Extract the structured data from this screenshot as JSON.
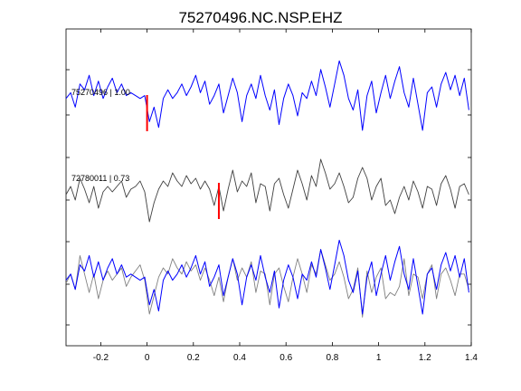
{
  "chart_data": {
    "type": "line",
    "title": "75270496.NC.NSP.EHZ",
    "xlabel": "",
    "ylabel": "",
    "xlim": [
      -0.35,
      1.4
    ],
    "x_ticks": [
      -0.2,
      0,
      0.2,
      0.4,
      0.6,
      0.8,
      1,
      1.2,
      1.4
    ],
    "x_tick_labels": [
      "-0.2",
      "0",
      "0.2",
      "0.4",
      "0.6",
      "0.8",
      "1",
      "1.2",
      "1.4"
    ],
    "y_ticks_visible": false,
    "grid": false,
    "panels": [
      {
        "label": "75270496 | 1.00",
        "color": "#0000ff",
        "pick_time": 0.0,
        "pick_color": "#ff0000"
      },
      {
        "label": "72780011 | 0.73",
        "color": "#404040",
        "pick_time": 0.31,
        "pick_color": "#ff0000"
      },
      {
        "label": "",
        "overlay": true,
        "colors": [
          "#808080",
          "#0000ff"
        ]
      }
    ],
    "series": [
      {
        "color": "#0000ff",
        "x": [
          -0.35,
          -0.33,
          -0.31,
          -0.29,
          -0.27,
          -0.25,
          -0.23,
          -0.21,
          -0.19,
          -0.17,
          -0.15,
          -0.13,
          -0.11,
          -0.09,
          -0.07,
          -0.05,
          -0.03,
          -0.01,
          0.01,
          0.03,
          0.05,
          0.07,
          0.09,
          0.11,
          0.13,
          0.15,
          0.17,
          0.19,
          0.21,
          0.23,
          0.25,
          0.27,
          0.29,
          0.31,
          0.33,
          0.35,
          0.37,
          0.39,
          0.41,
          0.43,
          0.45,
          0.47,
          0.49,
          0.51,
          0.53,
          0.55,
          0.57,
          0.59,
          0.61,
          0.63,
          0.65,
          0.67,
          0.69,
          0.71,
          0.73,
          0.75,
          0.77,
          0.79,
          0.81,
          0.83,
          0.85,
          0.87,
          0.89,
          0.91,
          0.93,
          0.95,
          0.97,
          0.99,
          1.01,
          1.03,
          1.05,
          1.07,
          1.09,
          1.11,
          1.13,
          1.15,
          1.17,
          1.19,
          1.21,
          1.23,
          1.25,
          1.27,
          1.29,
          1.31,
          1.33,
          1.35,
          1.37,
          1.39
        ],
        "y": [
          0.1,
          0.3,
          -0.2,
          0.6,
          0.4,
          0.9,
          0.2,
          0.7,
          0.1,
          0.5,
          0.8,
          0.3,
          0.6,
          0.2,
          0.3,
          0.2,
          0.1,
          0.2,
          -0.7,
          -0.2,
          -0.9,
          0.1,
          0.4,
          0.1,
          0.3,
          0.6,
          0.2,
          0.5,
          0.9,
          0.3,
          0.7,
          -0.1,
          0.2,
          0.6,
          -0.4,
          0.2,
          0.8,
          0.3,
          -0.7,
          0.2,
          0.6,
          0.1,
          0.9,
          0.2,
          -0.3,
          0.4,
          -0.8,
          0.1,
          0.6,
          0.2,
          -0.5,
          0.3,
          0.1,
          0.7,
          0.2,
          1.1,
          0.5,
          -0.2,
          0.6,
          1.4,
          0.9,
          0.1,
          -0.3,
          0.4,
          -1.0,
          0.2,
          0.7,
          -0.4,
          0.3,
          0.9,
          0.1,
          0.7,
          1.2,
          0.3,
          -0.2,
          0.8,
          -0.1,
          -1.0,
          0.3,
          0.5,
          -0.2,
          0.6,
          1.0,
          0.4,
          0.9,
          0.2,
          0.8,
          -0.3
        ]
      },
      {
        "color": "#404040",
        "x": [
          -0.35,
          -0.33,
          -0.31,
          -0.29,
          -0.27,
          -0.25,
          -0.23,
          -0.21,
          -0.19,
          -0.17,
          -0.15,
          -0.13,
          -0.11,
          -0.09,
          -0.07,
          -0.05,
          -0.03,
          -0.01,
          0.01,
          0.03,
          0.05,
          0.07,
          0.09,
          0.11,
          0.13,
          0.15,
          0.17,
          0.19,
          0.21,
          0.23,
          0.25,
          0.27,
          0.29,
          0.31,
          0.33,
          0.35,
          0.37,
          0.39,
          0.41,
          0.43,
          0.45,
          0.47,
          0.49,
          0.51,
          0.53,
          0.55,
          0.57,
          0.59,
          0.61,
          0.63,
          0.65,
          0.67,
          0.69,
          0.71,
          0.73,
          0.75,
          0.77,
          0.79,
          0.81,
          0.83,
          0.85,
          0.87,
          0.89,
          0.91,
          0.93,
          0.95,
          0.97,
          0.99,
          1.01,
          1.03,
          1.05,
          1.07,
          1.09,
          1.11,
          1.13,
          1.15,
          1.17,
          1.19,
          1.21,
          1.23,
          1.25,
          1.27,
          1.29,
          1.31,
          1.33,
          1.35,
          1.37,
          1.39
        ],
        "y": [
          0.0,
          0.3,
          -0.2,
          0.6,
          0.2,
          -0.3,
          0.3,
          -0.5,
          0.1,
          0.3,
          0.1,
          0.3,
          0.5,
          -0.1,
          0.2,
          0.3,
          0.5,
          0.1,
          -1.0,
          -0.3,
          0.2,
          0.5,
          0.3,
          0.8,
          0.5,
          0.3,
          0.7,
          0.4,
          0.6,
          0.2,
          0.5,
          0.2,
          -0.4,
          0.3,
          -0.6,
          0.2,
          0.9,
          0.1,
          0.5,
          0.3,
          0.8,
          -0.3,
          0.4,
          0.3,
          -0.6,
          0.4,
          0.6,
          0.0,
          -0.5,
          0.2,
          0.9,
          0.4,
          -0.2,
          0.7,
          0.3,
          1.3,
          0.8,
          0.2,
          0.4,
          0.8,
          0.3,
          -0.3,
          -0.1,
          0.6,
          1.0,
          0.6,
          -0.2,
          0.3,
          0.6,
          -0.4,
          -0.2,
          -0.7,
          -0.1,
          0.3,
          -0.2,
          0.5,
          0.1,
          -0.5,
          0.3,
          0.2,
          -0.4,
          0.4,
          0.7,
          0.2,
          -0.5,
          0.3,
          0.4,
          0.0
        ]
      },
      {
        "color": "#808080",
        "x": [
          -0.35,
          -0.33,
          -0.31,
          -0.29,
          -0.27,
          -0.25,
          -0.23,
          -0.21,
          -0.19,
          -0.17,
          -0.15,
          -0.13,
          -0.11,
          -0.09,
          -0.07,
          -0.05,
          -0.03,
          -0.01,
          0.01,
          0.03,
          0.05,
          0.07,
          0.09,
          0.11,
          0.13,
          0.15,
          0.17,
          0.19,
          0.21,
          0.23,
          0.25,
          0.27,
          0.29,
          0.31,
          0.33,
          0.35,
          0.37,
          0.39,
          0.41,
          0.43,
          0.45,
          0.47,
          0.49,
          0.51,
          0.53,
          0.55,
          0.57,
          0.59,
          0.61,
          0.63,
          0.65,
          0.67,
          0.69,
          0.71,
          0.73,
          0.75,
          0.77,
          0.79,
          0.81,
          0.83,
          0.85,
          0.87,
          0.89,
          0.91,
          0.93,
          0.95,
          0.97,
          0.99,
          1.01,
          1.03,
          1.05,
          1.07,
          1.09,
          1.11,
          1.13,
          1.15,
          1.17,
          1.19,
          1.21,
          1.23,
          1.25,
          1.27,
          1.29,
          1.31,
          1.33,
          1.35,
          1.37,
          1.39
        ],
        "y": [
          0.0,
          0.3,
          -0.2,
          0.9,
          0.3,
          -0.3,
          0.3,
          -0.5,
          0.1,
          0.4,
          0.1,
          0.3,
          0.5,
          -0.1,
          0.2,
          0.4,
          0.6,
          0.1,
          -1.0,
          -0.4,
          0.2,
          0.5,
          0.3,
          0.8,
          0.5,
          0.3,
          0.7,
          0.4,
          0.6,
          0.1,
          0.5,
          0.1,
          -0.4,
          0.2,
          -0.6,
          0.2,
          0.8,
          0.1,
          0.5,
          0.2,
          0.7,
          -0.3,
          0.4,
          0.3,
          -0.7,
          0.3,
          0.5,
          -0.1,
          -0.6,
          0.2,
          0.8,
          0.3,
          -0.3,
          0.6,
          0.3,
          1.1,
          0.6,
          0.1,
          0.3,
          0.7,
          0.2,
          -0.5,
          -0.2,
          0.5,
          -1.1,
          0.4,
          -0.3,
          0.2,
          0.5,
          -0.5,
          -0.3,
          -0.4,
          -0.1,
          0.8,
          -0.4,
          0.3,
          0.2,
          -0.5,
          0.3,
          0.6,
          -0.5,
          0.3,
          0.5,
          0.1,
          -0.4,
          0.3,
          0.3,
          -0.2
        ]
      },
      {
        "color": "#0000ff",
        "x": [
          -0.35,
          -0.33,
          -0.31,
          -0.29,
          -0.27,
          -0.25,
          -0.23,
          -0.21,
          -0.19,
          -0.17,
          -0.15,
          -0.13,
          -0.11,
          -0.09,
          -0.07,
          -0.05,
          -0.03,
          -0.01,
          0.01,
          0.03,
          0.05,
          0.07,
          0.09,
          0.11,
          0.13,
          0.15,
          0.17,
          0.19,
          0.21,
          0.23,
          0.25,
          0.27,
          0.29,
          0.31,
          0.33,
          0.35,
          0.37,
          0.39,
          0.41,
          0.43,
          0.45,
          0.47,
          0.49,
          0.51,
          0.53,
          0.55,
          0.57,
          0.59,
          0.61,
          0.63,
          0.65,
          0.67,
          0.69,
          0.71,
          0.73,
          0.75,
          0.77,
          0.79,
          0.81,
          0.83,
          0.85,
          0.87,
          0.89,
          0.91,
          0.93,
          0.95,
          0.97,
          0.99,
          1.01,
          1.03,
          1.05,
          1.07,
          1.09,
          1.11,
          1.13,
          1.15,
          1.17,
          1.19,
          1.21,
          1.23,
          1.25,
          1.27,
          1.29,
          1.31,
          1.33,
          1.35,
          1.37,
          1.39
        ],
        "y": [
          0.1,
          0.3,
          -0.2,
          0.6,
          0.4,
          0.9,
          0.2,
          0.7,
          0.1,
          0.5,
          0.8,
          0.3,
          0.6,
          0.2,
          0.3,
          0.2,
          0.1,
          0.2,
          -0.7,
          -0.2,
          -0.9,
          0.1,
          0.4,
          0.1,
          0.3,
          0.6,
          0.2,
          0.5,
          0.9,
          0.3,
          0.7,
          -0.1,
          0.2,
          0.6,
          -0.4,
          0.2,
          0.8,
          0.3,
          -0.7,
          0.2,
          0.6,
          0.1,
          0.9,
          0.2,
          -0.3,
          0.4,
          -0.8,
          0.1,
          0.6,
          0.2,
          -0.5,
          0.3,
          0.1,
          0.7,
          0.2,
          1.1,
          0.5,
          -0.2,
          0.6,
          1.4,
          0.9,
          0.1,
          -0.3,
          0.4,
          -1.0,
          0.2,
          0.7,
          -0.4,
          0.3,
          0.9,
          0.1,
          0.7,
          1.2,
          0.3,
          -0.2,
          0.8,
          -0.1,
          -1.0,
          0.3,
          0.5,
          -0.2,
          0.6,
          1.0,
          0.4,
          0.9,
          0.2,
          0.8,
          -0.3
        ]
      }
    ]
  }
}
